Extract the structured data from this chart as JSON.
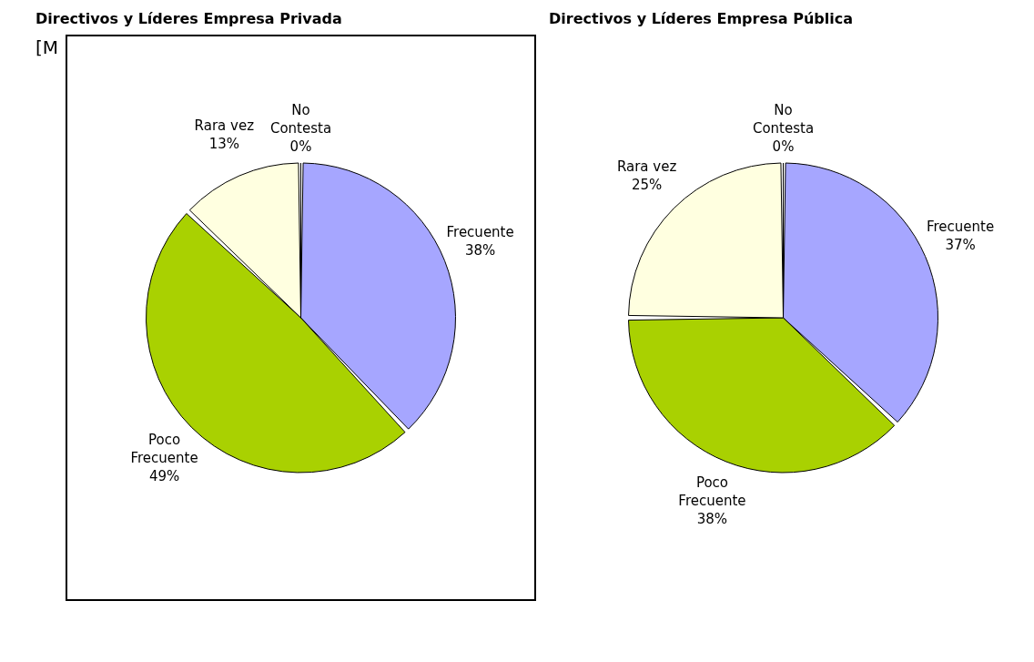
{
  "chart_data": [
    {
      "type": "pie",
      "title": "Directivos y Líderes Empresa Privada",
      "annotations": [
        "[M"
      ],
      "categories": [
        "Frecuente",
        "Poco Frecuente",
        "Rara vez",
        "No Contesta"
      ],
      "values": [
        38,
        49,
        13,
        0
      ],
      "value_labels": [
        "38%",
        "49%",
        "13%",
        "0%"
      ],
      "colors": [
        "#a6a6ff",
        "#a9d101",
        "#ffffe0",
        "#ffffff"
      ],
      "legend": false
    },
    {
      "type": "pie",
      "title": "Directivos y Líderes Empresa Pública",
      "categories": [
        "Frecuente",
        "Poco Frecuente",
        "Rara vez",
        "No Contesta"
      ],
      "values": [
        37,
        38,
        25,
        0
      ],
      "value_labels": [
        "37%",
        "38%",
        "25%",
        "0%"
      ],
      "colors": [
        "#a6a6ff",
        "#a9d101",
        "#ffffe0",
        "#ffffff"
      ],
      "legend": false
    }
  ]
}
